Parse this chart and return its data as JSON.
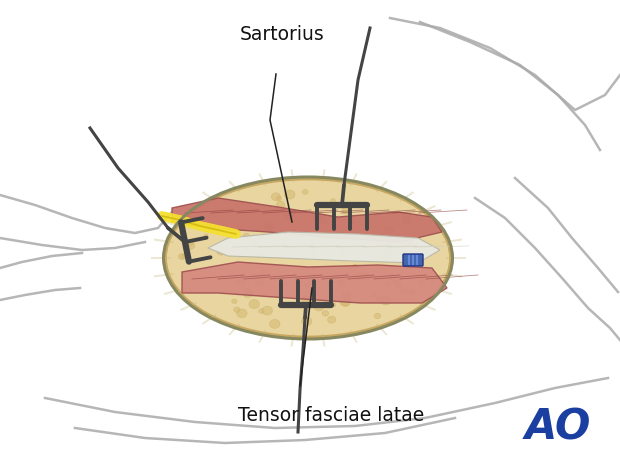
{
  "background_color": "#ffffff",
  "labels": {
    "sartorius": "Sartorius",
    "tensor": "Tensor fasciae latae",
    "ao": "AO"
  },
  "ao_color": "#1a3fa0",
  "fat_color": "#e8d5a0",
  "fat_edge_color": "#c8a860",
  "muscle_color_1": "#c8736a",
  "muscle_color_2": "#d4887e",
  "tendon_color": "#e8e8e0",
  "nerve_color": "#f5e030",
  "nerve_edge_color": "#c8b000",
  "line_color": "#222222",
  "gray_line_color": "#aaaaaa",
  "blue_clip_color": "#4466aa",
  "muscle_fiber_color": "#904040",
  "tendon_fiber_color": "#d0d0c0",
  "fat_dot_color": "#d4b870",
  "fat_dot_edge": "#c0a050",
  "retractor_color": "#444444",
  "wound_border_color": "#888860"
}
